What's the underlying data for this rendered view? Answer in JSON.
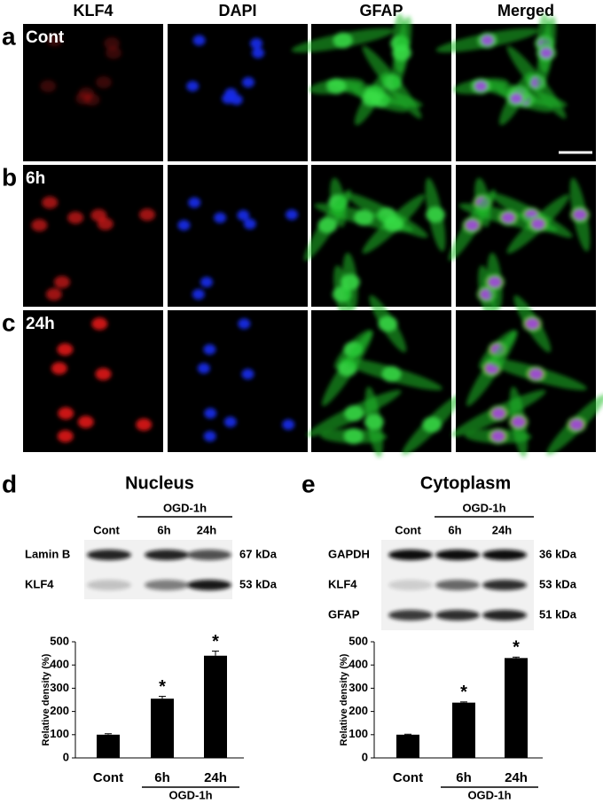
{
  "figure": {
    "panel_labels": [
      "a",
      "b",
      "c",
      "d",
      "e"
    ],
    "column_headers": [
      "KLF4",
      "DAPI",
      "GFAP",
      "Merged"
    ],
    "row_labels": [
      "Cont",
      "6h",
      "24h"
    ]
  },
  "blots": [
    {
      "title": "Nucleus",
      "lanes": [
        "Cont",
        "6h",
        "24h"
      ],
      "group_label": "OGD-1h",
      "rows": [
        "Lamin B",
        "KLF4"
      ],
      "sizes": [
        "67 kDa",
        "53 kDa"
      ]
    },
    {
      "title": "Cytoplasm",
      "lanes": [
        "Cont",
        "6h",
        "24h"
      ],
      "group_label": "OGD-1h",
      "rows": [
        "GAPDH",
        "KLF4",
        "GFAP"
      ],
      "sizes": [
        "36 kDa",
        "53 kDa",
        "51 kDa"
      ]
    }
  ],
  "chart_data": [
    {
      "type": "bar",
      "y_label": "Relative density (%)",
      "categories": [
        "Cont",
        "6h",
        "24h"
      ],
      "group_label": "OGD-1h",
      "values": [
        100,
        255,
        440
      ],
      "errors": [
        4,
        10,
        20
      ],
      "markers": [
        null,
        "*",
        "*"
      ],
      "color": "#000000",
      "ylim": [
        0,
        500
      ],
      "yticks": [
        0,
        100,
        200,
        300,
        400,
        500
      ]
    },
    {
      "type": "bar",
      "y_label": "Relative density (%)",
      "categories": [
        "Cont",
        "6h",
        "24h"
      ],
      "group_label": "OGD-1h",
      "values": [
        100,
        238,
        430
      ],
      "errors": [
        2,
        3,
        4
      ],
      "markers": [
        null,
        "*",
        "*"
      ],
      "color": "#000000",
      "ylim": [
        0,
        500
      ],
      "yticks": [
        0,
        100,
        200,
        300,
        400,
        500
      ]
    }
  ]
}
